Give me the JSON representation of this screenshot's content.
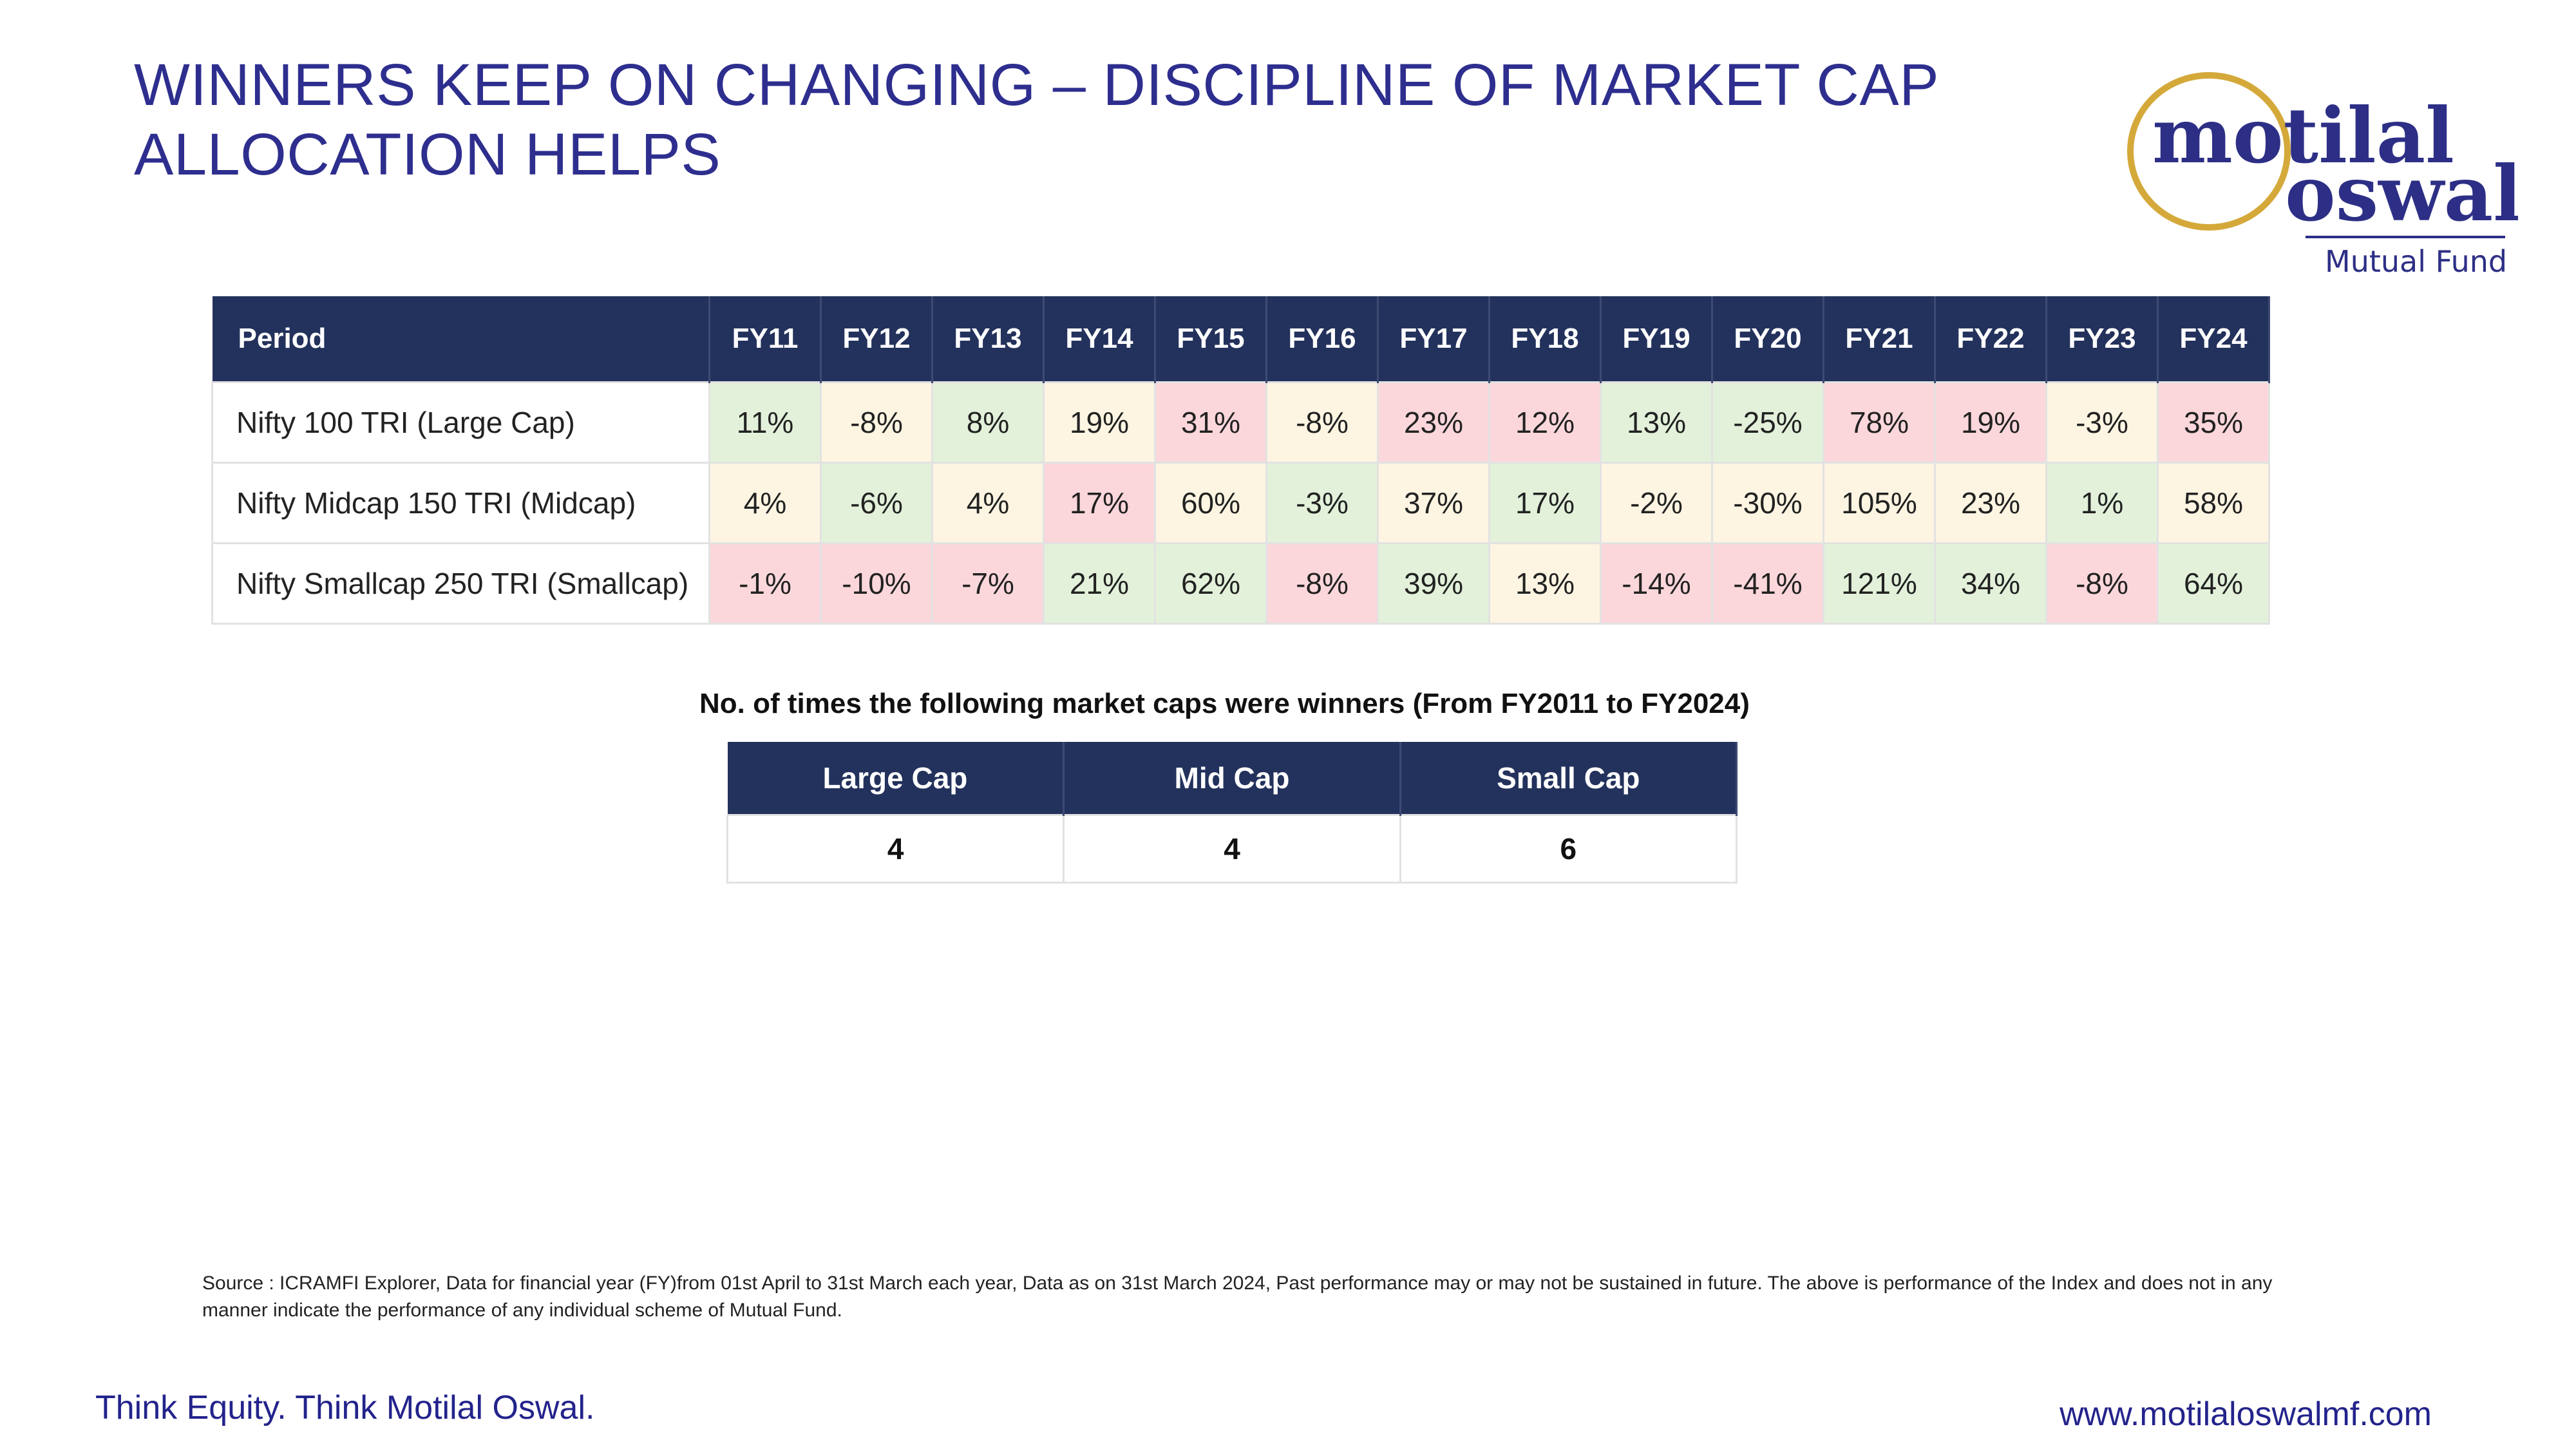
{
  "title": "WINNERS KEEP ON CHANGING – DISCIPLINE OF MARKET CAP ALLOCATION HELPS",
  "logo": {
    "line1": "motilal",
    "line2": "oswal",
    "tagline": "Mutual Fund"
  },
  "returns_table": {
    "header": [
      "Period",
      "FY11",
      "FY12",
      "FY13",
      "FY14",
      "FY15",
      "FY16",
      "FY17",
      "FY18",
      "FY19",
      "FY20",
      "FY21",
      "FY22",
      "FY23",
      "FY24"
    ],
    "rows": [
      {
        "label": "Nifty 100 TRI (Large Cap)",
        "values": [
          "11%",
          "-8%",
          "8%",
          "19%",
          "31%",
          "-8%",
          "23%",
          "12%",
          "13%",
          "-25%",
          "78%",
          "19%",
          "-3%",
          "35%"
        ]
      },
      {
        "label": "Nifty Midcap 150 TRI (Midcap)",
        "values": [
          "4%",
          "-6%",
          "4%",
          "17%",
          "60%",
          "-3%",
          "37%",
          "17%",
          "-2%",
          "-30%",
          "105%",
          "23%",
          "1%",
          "58%"
        ]
      },
      {
        "label": "Nifty Smallcap 250 TRI (Smallcap)",
        "values": [
          "-1%",
          "-10%",
          "-7%",
          "21%",
          "62%",
          "-8%",
          "39%",
          "13%",
          "-14%",
          "-41%",
          "121%",
          "34%",
          "-8%",
          "64%"
        ]
      }
    ],
    "colors": {
      "green": "#e3f1da",
      "red": "#fbd7db",
      "yellow": "#fdf5e2",
      "header_bg": "#23325c"
    }
  },
  "winners": {
    "heading": "No. of times the following market caps were winners (From FY2011 to FY2024)",
    "header": [
      "Large Cap",
      "Mid Cap",
      "Small Cap"
    ],
    "values": [
      "4",
      "4",
      "6"
    ]
  },
  "source": "Source : ICRAMFI Explorer, Data for financial year (FY)from 01st April to 31st March each year, Data as on 31st March 2024, Past performance may or may not be sustained in future. The above is performance of the Index and does not in any manner indicate the performance of any individual scheme of Mutual Fund.",
  "footer": {
    "tagline": "Think Equity. Think Motilal Oswal.",
    "website": "www.motilaloswalmf.com"
  }
}
